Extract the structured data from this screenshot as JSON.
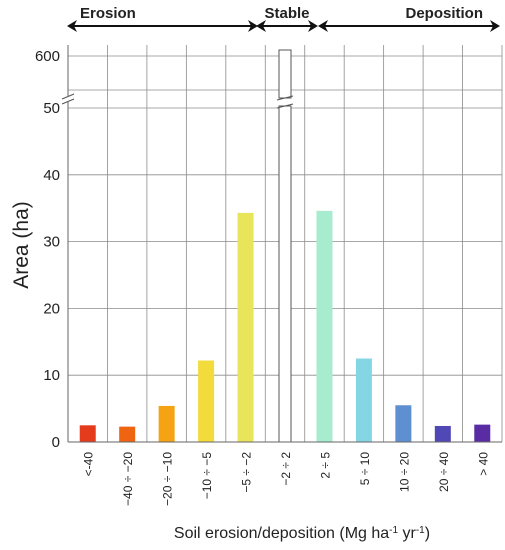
{
  "chart_data": {
    "type": "bar",
    "xlabel_main": "Soil erosion/deposition (Mg ha",
    "xlabel_sup1": "-1",
    "xlabel_mid": " yr",
    "xlabel_sup2": "-1",
    "xlabel_end": ")",
    "ylabel": "Area (ha)",
    "ylim": [
      0,
      50
    ],
    "yticks": [
      "0",
      "10",
      "20",
      "30",
      "40",
      "50"
    ],
    "upper_tick": "600",
    "axis_break": true,
    "grid": true,
    "categories": [
      "<-40",
      "−40 ÷ −20",
      "−20 ÷ −10",
      "−10 ÷ −5",
      "−5 ÷ −2",
      "−2 ÷ 2",
      "2 ÷ 5",
      "5 ÷ 10",
      "10 ÷ 20",
      "20 ÷ 40",
      "> 40"
    ],
    "values": [
      2.5,
      2.3,
      5.4,
      12.2,
      34.3,
      610,
      34.6,
      12.5,
      5.5,
      2.4,
      2.6
    ],
    "colors": [
      "#e33b1c",
      "#ee6410",
      "#f5a312",
      "#f2dc3c",
      "#e9e55a",
      "#ffffff",
      "#a8ecd0",
      "#84d6e4",
      "#5e8fd0",
      "#5048b4",
      "#5a2ca4"
    ],
    "zones": [
      {
        "label": "Erosion"
      },
      {
        "label": "Stable"
      },
      {
        "label": "Deposition"
      }
    ]
  }
}
